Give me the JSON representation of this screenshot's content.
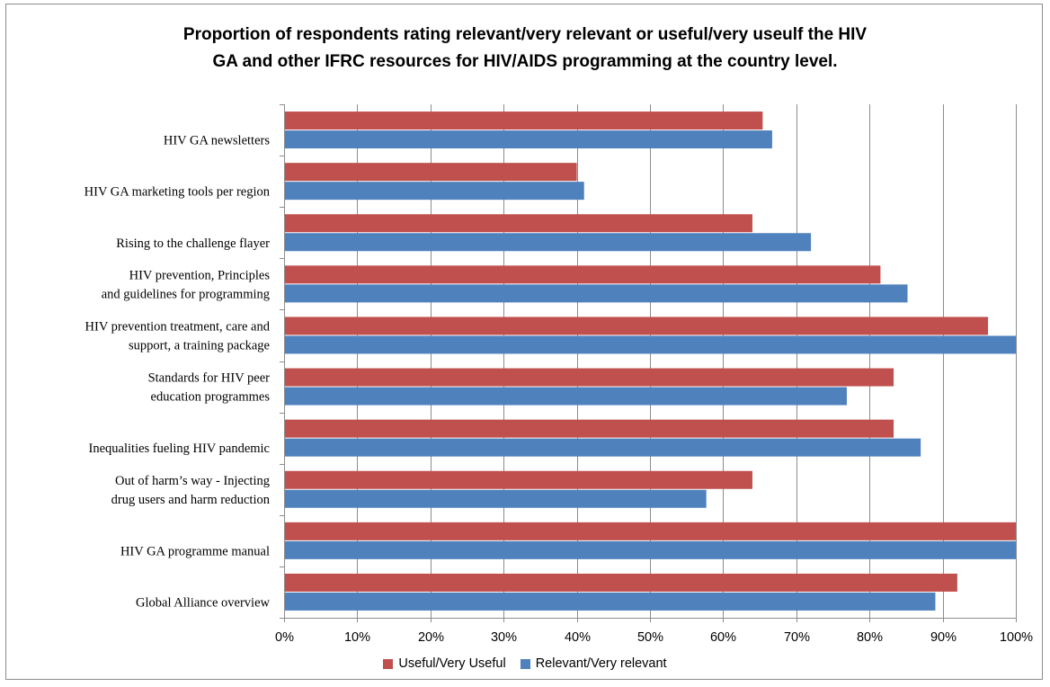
{
  "chart_data": {
    "type": "bar",
    "orientation": "horizontal",
    "title_lines": [
      "Proportion of respondents rating relevant/very relevant or useful/very useulf  the HIV",
      "GA and other IFRC resources for HIV/AIDS programming at the country level."
    ],
    "categories": [
      [
        "HIV GA  newsletters"
      ],
      [
        "HIV GA marketing tools per region"
      ],
      [
        "Rising to the challenge flayer"
      ],
      [
        "HIV prevention, Principles",
        "and guidelines for programming"
      ],
      [
        "HIV prevention treatment, care and",
        "support, a training package"
      ],
      [
        "Standards for HIV peer",
        "education programmes"
      ],
      [
        "Inequalities fueling HIV pandemic"
      ],
      [
        "Out of harm’s way - Injecting",
        "drug users and harm reduction"
      ],
      [
        "HIV GA programme  manual"
      ],
      [
        "Global Alliance overview"
      ]
    ],
    "series": [
      {
        "name": "Useful/Very Useful",
        "color": "#C0504D",
        "values": [
          65.4,
          40.0,
          64.0,
          81.5,
          96.2,
          83.3,
          83.3,
          64.0,
          100.0,
          92.0
        ]
      },
      {
        "name": "Relevant/Very relevant",
        "color": "#4F81BD",
        "values": [
          66.7,
          41.0,
          72.0,
          85.2,
          100.0,
          76.9,
          87.0,
          57.7,
          100.0,
          89.0
        ]
      }
    ],
    "xlim": [
      0,
      100
    ],
    "x_ticks": [
      "0%",
      "10%",
      "20%",
      "30%",
      "40%",
      "50%",
      "60%",
      "70%",
      "80%",
      "90%",
      "100%"
    ],
    "grid": true,
    "legend_position": "bottom"
  }
}
